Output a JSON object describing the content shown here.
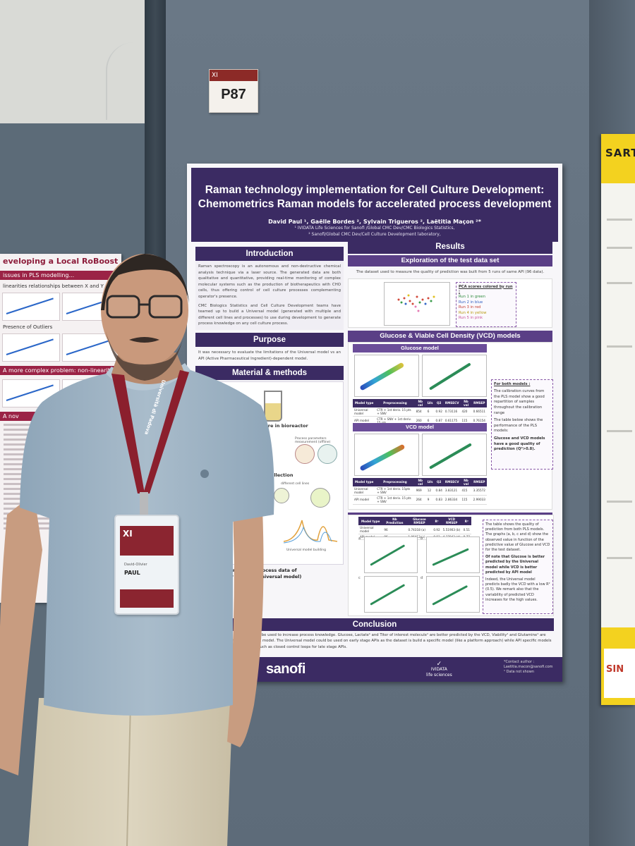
{
  "tag": {
    "band": "XI",
    "number": "P87"
  },
  "left_poster": {
    "title": "eveloping a Local RoBoost PLS",
    "h1": "issues in PLS modelling...",
    "sub1": "linearities relationships between X and Y",
    "sub2": "Presence of Outliers",
    "h2": "A more complex problem: non-linearit",
    "h3": "A nov"
  },
  "right_poster": {
    "brand": "SARTORI",
    "bottom": "SIN"
  },
  "poster": {
    "title_line1": "Raman technology implementation for Cell Culture Development:",
    "title_line2": "Chemometrics Raman models for accelerated process development",
    "authors": "David Paul ¹, Gaëlle Bordes ², Sylvain Trigueros ², Laëtitia Maçon ²*",
    "affiliation1": "¹ IVIDATA Life Sciences for Sanofi /Global CMC Dev/CMC Biologics Statistics,",
    "affiliation2": "² Sanofi/Global CMC Dev/Cell Culture Development laboratory,",
    "introduction": {
      "heading": "Introduction",
      "p1": "Raman spectroscopy is an autonomous and non-destructive chemical analysis technique via a laser source. The generated data are both qualitative and quantitative, providing real-time monitoring of complex molecular systems such as the production of biotherapeutics with CHO cells, thus offering control of cell culture processes complementing operator's presence.",
      "p2": "CMC Biologics Statistics and Cell Culture Development teams have teamed up to build a Universal model (generated with multiple and different cell lines and processes) to use during development to generate process knowledge on any cell culture process."
    },
    "purpose": {
      "heading": "Purpose",
      "text": "It was necessary to evaluate the limitations of the Universal model vs an API (Active Pharmaceutical Ingredient)-dependent model."
    },
    "methods": {
      "heading": "Material & methods",
      "step1": "ture in bioreactor",
      "step1_sub": "Process parameters measurement (offline)",
      "step2": "collection",
      "step2_sub": "different cell lines",
      "step3_sub": "Universal model building",
      "caption1": "y crossing Raman and process data of",
      "caption2": "API model) or several (Universal model)"
    },
    "results": {
      "heading": "Results",
      "exploration": {
        "heading": "Exploration of the test data set",
        "text": "The dataset used to measure the quality of prediction was built from 5 runs of same API (96 data).",
        "pca_title": "PCA scores colored by run :",
        "runs": [
          "Run 1 in green",
          "Run 2 in blue",
          "Run 3 in red",
          "Run 4 in yellow",
          "Run 5 in pink"
        ]
      },
      "glucose_vcd": {
        "heading": "Glucose & Viable Cell Density (VCD) models",
        "glucose_heading": "Glucose model",
        "vcd_heading": "VCD model",
        "table_headers": [
          "Model type",
          "Preprocessing",
          "Nb cal",
          "LVs",
          "Q2",
          "RMSECV",
          "Nb val",
          "RMSEP"
        ],
        "glucose_rows": [
          [
            "Universal model",
            "CTR + 1st deriv. 15 pts + SNV",
            "854",
            "6",
            "0.92",
            "0.73116",
            "420",
            "0.66511"
          ],
          [
            "API model",
            "CTR + SNV + 1st deriv. 15 pts",
            "260",
            "6",
            "0.87",
            "0.61175",
            "115",
            "0.76154"
          ]
        ],
        "vcd_rows": [
          [
            "Universal model",
            "CTR + 1st deriv. 15pts + SNV",
            "969",
            "12",
            "0.84",
            "3.83121",
            "415",
            "3.35572"
          ],
          [
            "API model",
            "CTR + 1st deriv. 15 pts + SNV",
            "264",
            "9",
            "0.83",
            "2.86334",
            "115",
            "2.99033"
          ]
        ],
        "note_title": "For both models :",
        "note1": "The calibration curves from the PLS model show a good repartition of samples throughout the calibration range",
        "note2": "The table below shows the performance of the PLS models:",
        "note3": "Glucose and VCD models have a good quality of prediction (Q²>0.8)."
      },
      "comparison": {
        "heading": "Comparison of prediction between Universal VS API models",
        "table_headers": [
          "Model type",
          "Nb Prediction",
          "Glucose RMSEP",
          "R²",
          "VCD RMSEP",
          "R²"
        ],
        "rows": [
          [
            "Universal model",
            "96",
            "0.74318 (a)",
            "0.92",
            "5.51903 (b)",
            "0.51"
          ],
          [
            "API model",
            "96",
            "1.06413 (c)",
            "0.83",
            "4.37843 (d)",
            "0.77"
          ]
        ],
        "panel_labels": [
          "a",
          "b",
          "c",
          "d"
        ],
        "note1": "The table shows the quality of prediction from both PLS models. The graphs (a, b, c and d) show the observed value in function of the predictive value of Glucose and VCD for the test dataset.",
        "note2": "Of note that Glucose is better predicted by the Universal model while VCD is better predicted by API model",
        "note3": "Indeed, the Universal model predicts badly the VCD with a low R² (0.5). We remark also that the variability of predicted VCD increases for the high values."
      }
    },
    "conclusion": {
      "heading": "Conclusion",
      "text": "of biomarkers, both models should be used to increase process knowledge. Glucose, Lactate¹ and Titer of interest molecule¹ are better predicted by the VCD, Viability¹ and Glutamine¹ are better predicted by the API specific model. The Universal model could be used on early stage APIs as the dataset is build a specific model (like a platform approach) while API specific models could allow new ways of working such as closed control loops for late stage APIs."
    },
    "footer": {
      "logo": "sanofi",
      "partner": "IVIDATA",
      "partner_sub": "life sciences",
      "contact1": "*Contact author :",
      "contact2": "Laetitia.macon@sanofi.com",
      "contact3": "¹ Data not shown"
    }
  },
  "badge": {
    "xi": "XI",
    "name_first": "David-Olivier",
    "name_last": "PAUL"
  },
  "lanyard": {
    "text": "Università di Padova"
  },
  "colors": {
    "poster_accent": "#3b2b63",
    "lanyard": "#8b1f2d",
    "shirt": "#9fb5c6"
  }
}
